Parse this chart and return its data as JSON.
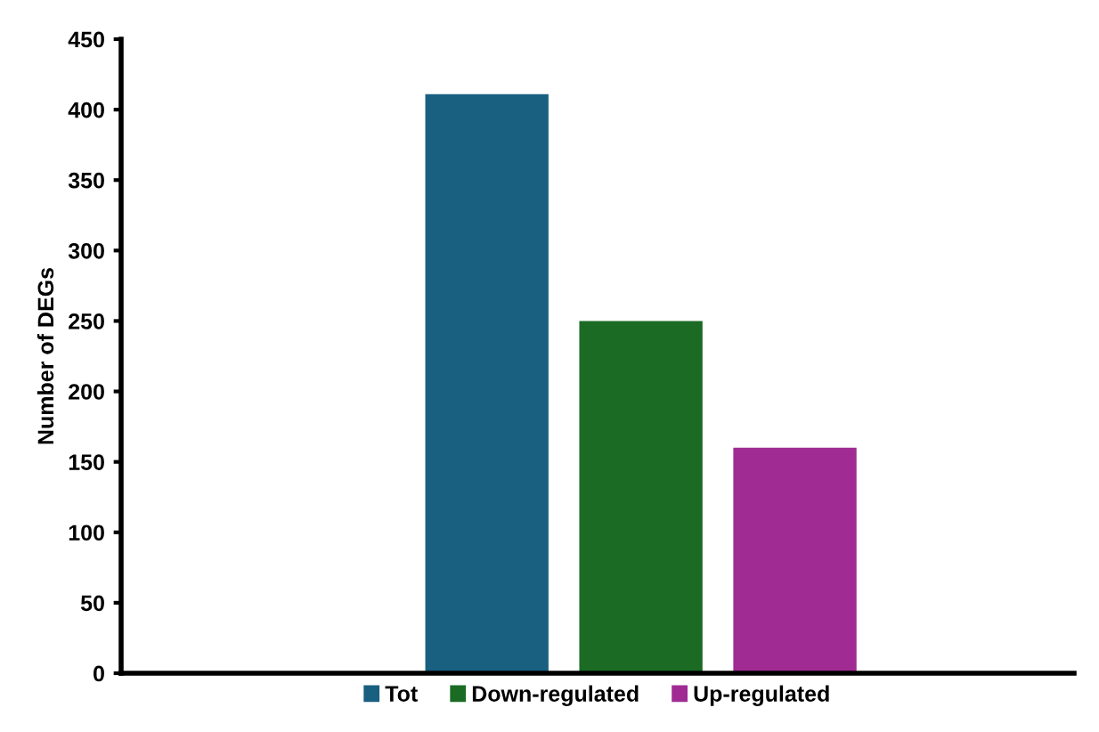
{
  "chart_data": {
    "type": "bar",
    "ylabel": "Number of DEGs",
    "categories": [
      null
    ],
    "series": [
      {
        "name": "Tot",
        "color": "#185f80",
        "values": [
          411
        ]
      },
      {
        "name": "Down-regulated",
        "color": "#1b6b24",
        "values": [
          250
        ]
      },
      {
        "name": "Up-regulated",
        "color": "#a02b93",
        "values": [
          160
        ]
      }
    ],
    "ylim": [
      0,
      450
    ],
    "yticks": [
      0,
      50,
      100,
      150,
      200,
      250,
      300,
      350,
      400,
      450
    ],
    "grid": false,
    "legend": "bottom"
  }
}
